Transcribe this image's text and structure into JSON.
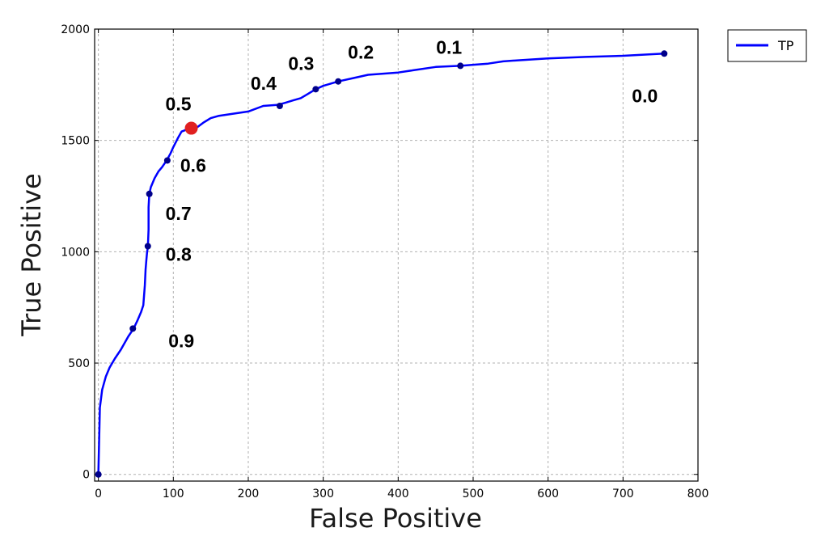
{
  "chart_data": {
    "type": "line",
    "title": "",
    "xlabel": "False Positive",
    "ylabel": "True Positive",
    "xlim": [
      -5,
      800
    ],
    "ylim": [
      -30,
      2000
    ],
    "xticks": [
      0,
      100,
      200,
      300,
      400,
      500,
      600,
      700,
      800
    ],
    "yticks": [
      0,
      500,
      1000,
      1500,
      2000
    ],
    "grid": true,
    "legend": {
      "position": "outside-top-right",
      "entries": [
        "TP"
      ]
    },
    "series": [
      {
        "name": "TP",
        "color": "#0000ff",
        "x": [
          0,
          2,
          5,
          10,
          15,
          22,
          30,
          40,
          47,
          52,
          57,
          60,
          62,
          63,
          64,
          65,
          66,
          67,
          67,
          68,
          70,
          75,
          80,
          85,
          91,
          96,
          100,
          106,
          111,
          115,
          119,
          124,
          132,
          140,
          150,
          160,
          180,
          200,
          220,
          240,
          250,
          260,
          270,
          280,
          290,
          300,
          320,
          340,
          360,
          400,
          420,
          450,
          483,
          500,
          520,
          540,
          560,
          600,
          650,
          700,
          755
        ],
        "y": [
          0,
          300,
          380,
          440,
          480,
          520,
          560,
          620,
          655,
          690,
          730,
          760,
          850,
          920,
          960,
          1000,
          1020,
          1100,
          1200,
          1260,
          1290,
          1330,
          1360,
          1380,
          1410,
          1440,
          1470,
          1510,
          1540,
          1545,
          1553,
          1555,
          1560,
          1580,
          1600,
          1610,
          1620,
          1630,
          1655,
          1660,
          1670,
          1680,
          1690,
          1710,
          1730,
          1745,
          1765,
          1780,
          1795,
          1805,
          1815,
          1830,
          1835,
          1840,
          1845,
          1855,
          1860,
          1868,
          1875,
          1880,
          1890
        ]
      }
    ],
    "markers": [
      {
        "x": 0,
        "y": 0,
        "label": ""
      },
      {
        "x": 46,
        "y": 655,
        "label": "0.9"
      },
      {
        "x": 66,
        "y": 1025,
        "label": "0.8"
      },
      {
        "x": 68,
        "y": 1260,
        "label": "0.7"
      },
      {
        "x": 92,
        "y": 1410,
        "label": "0.6"
      },
      {
        "x": 242,
        "y": 1655,
        "label": "0.4"
      },
      {
        "x": 290,
        "y": 1730,
        "label": "0.3"
      },
      {
        "x": 320,
        "y": 1765,
        "label": "0.2"
      },
      {
        "x": 483,
        "y": 1835,
        "label": "0.1"
      },
      {
        "x": 755,
        "y": 1890,
        "label": "0.0"
      }
    ],
    "highlight": {
      "x": 124,
      "y": 1555,
      "label": "0.5",
      "color": "#e02020"
    }
  }
}
